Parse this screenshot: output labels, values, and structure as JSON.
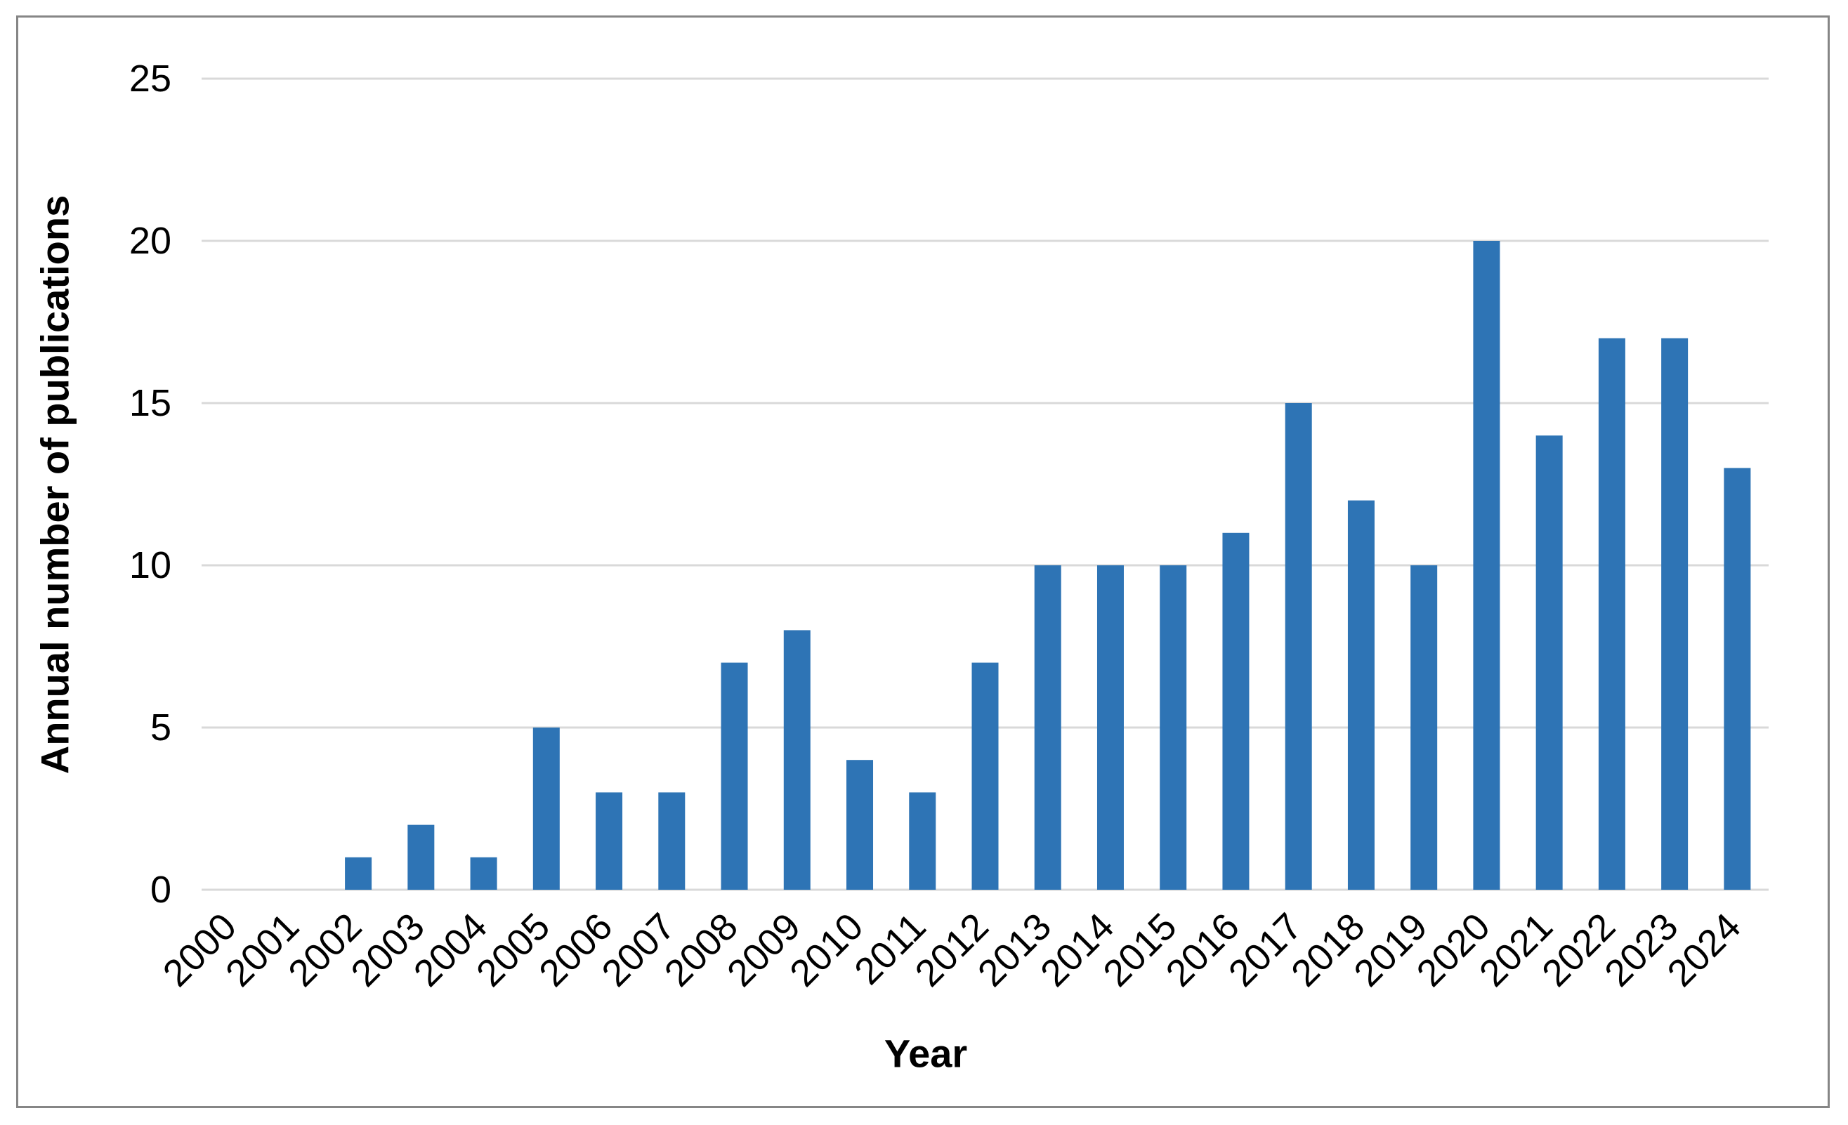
{
  "chart": {
    "background_color": "#FFFFFF",
    "border_color": "#868686"
  },
  "chart_data": {
    "type": "bar",
    "title": "",
    "xlabel": "Year",
    "ylabel": "Annual number of publications",
    "categories": [
      "2000",
      "2001",
      "2002",
      "2003",
      "2004",
      "2005",
      "2006",
      "2007",
      "2008",
      "2009",
      "2010",
      "2011",
      "2012",
      "2013",
      "2014",
      "2015",
      "2016",
      "2017",
      "2018",
      "2019",
      "2020",
      "2021",
      "2022",
      "2023",
      "2024"
    ],
    "values": [
      0,
      0,
      1,
      2,
      1,
      5,
      3,
      3,
      7,
      8,
      4,
      3,
      7,
      10,
      10,
      10,
      11,
      15,
      12,
      10,
      20,
      14,
      17,
      17,
      13
    ],
    "ylim": [
      0,
      25
    ],
    "yticks": [
      0,
      5,
      10,
      15,
      20,
      25
    ],
    "grid": "horizontal",
    "legend": "none",
    "bar_color": "#2E74B5",
    "gridline_color": "#D9D9D9",
    "tick_label_color": "#000000"
  }
}
